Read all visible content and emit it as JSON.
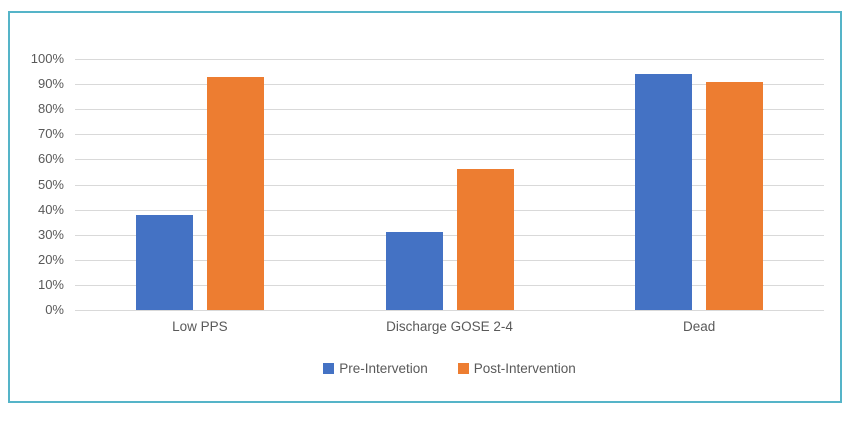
{
  "chart_data": {
    "type": "bar",
    "title": "",
    "categories": [
      "Low PPS",
      "Discharge GOSE 2-4",
      "Dead"
    ],
    "series": [
      {
        "name": "Pre-Intervetion",
        "color": "#4472C4",
        "values": [
          38,
          31,
          94
        ]
      },
      {
        "name": "Post-Intervention",
        "color": "#ED7D31",
        "values": [
          93,
          56,
          91
        ]
      }
    ],
    "value_unit": "%",
    "xlabel": "",
    "ylabel": "",
    "ylim": [
      0,
      100
    ],
    "yticks": [
      "0%",
      "10%",
      "20%",
      "30%",
      "40%",
      "50%",
      "60%",
      "70%",
      "80%",
      "90%",
      "100%"
    ],
    "ytick_step": 10,
    "grid": true,
    "legend_position": "bottom"
  },
  "colors": {
    "frame_border": "#55B4C8",
    "gridline": "#D9D9D9",
    "axis_text": "#595959",
    "background": "#FFFFFF"
  }
}
